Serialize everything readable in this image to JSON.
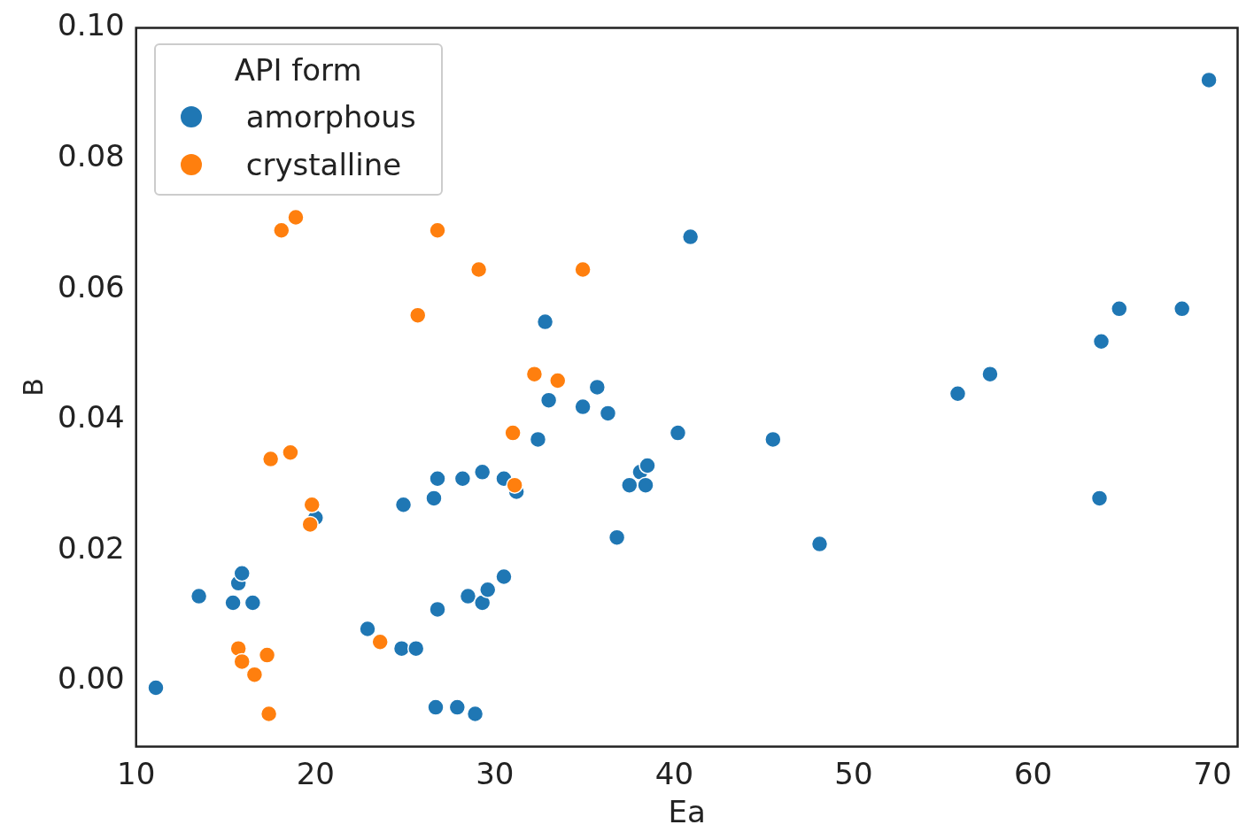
{
  "chart_data": {
    "type": "scatter",
    "xlabel": "Ea",
    "ylabel": "B",
    "legend_title": "API form",
    "legend": "top left",
    "grid": false,
    "marker": "circle",
    "xlim": [
      10,
      71.4
    ],
    "ylim": [
      -0.01,
      0.1
    ],
    "xticks": [
      10,
      20,
      30,
      40,
      50,
      60,
      70
    ],
    "yticks": [
      {
        "value": 0,
        "label": "0.00"
      },
      {
        "value": 0.02,
        "label": "0.02"
      },
      {
        "value": 0.04,
        "label": "0.04"
      },
      {
        "value": 0.06,
        "label": "0.06"
      },
      {
        "value": 0.08,
        "label": "0.08"
      },
      {
        "value": 0.1,
        "label": "0.10"
      }
    ],
    "series": [
      {
        "name": "amorphous",
        "color": "#1f77b4",
        "x": [
          11.1,
          13.5,
          15.4,
          15.7,
          15.9,
          16.5,
          20.0,
          22.9,
          24.8,
          25.6,
          24.9,
          26.6,
          26.8,
          26.8,
          26.7,
          27.9,
          28.9,
          28.2,
          29.3,
          28.5,
          29.3,
          29.6,
          30.5,
          30.5,
          31.2,
          32.4,
          32.8,
          33.0,
          34.9,
          35.7,
          36.3,
          36.8,
          37.5,
          38.1,
          38.4,
          38.5,
          40.2,
          40.9,
          45.5,
          48.1,
          55.8,
          57.6,
          63.8,
          63.7,
          64.8,
          68.3,
          69.8
        ],
        "values": [
          -0.001,
          0.013,
          0.012,
          0.015,
          0.0165,
          0.012,
          0.025,
          0.008,
          0.005,
          0.005,
          0.027,
          0.028,
          0.031,
          0.011,
          -0.004,
          -0.004,
          -0.005,
          0.031,
          0.032,
          0.013,
          0.012,
          0.014,
          0.016,
          0.031,
          0.029,
          0.037,
          0.055,
          0.043,
          0.042,
          0.045,
          0.041,
          0.022,
          0.03,
          0.032,
          0.03,
          0.033,
          0.038,
          0.068,
          0.037,
          0.021,
          0.044,
          0.047,
          0.052,
          0.028,
          0.057,
          0.057,
          0.092
        ]
      },
      {
        "name": "crystalline",
        "color": "#ff7f0e",
        "x": [
          18.1,
          18.9,
          26.8,
          29.1,
          34.9,
          25.7,
          32.2,
          33.5,
          31.0,
          31.1,
          17.5,
          18.6,
          19.8,
          19.7,
          15.7,
          15.9,
          16.6,
          17.3,
          23.6,
          17.4
        ],
        "values": [
          0.069,
          0.071,
          0.069,
          0.063,
          0.063,
          0.056,
          0.047,
          0.046,
          0.038,
          0.03,
          0.034,
          0.035,
          0.027,
          0.024,
          0.005,
          0.003,
          0.001,
          0.004,
          0.006,
          -0.005
        ]
      }
    ]
  }
}
